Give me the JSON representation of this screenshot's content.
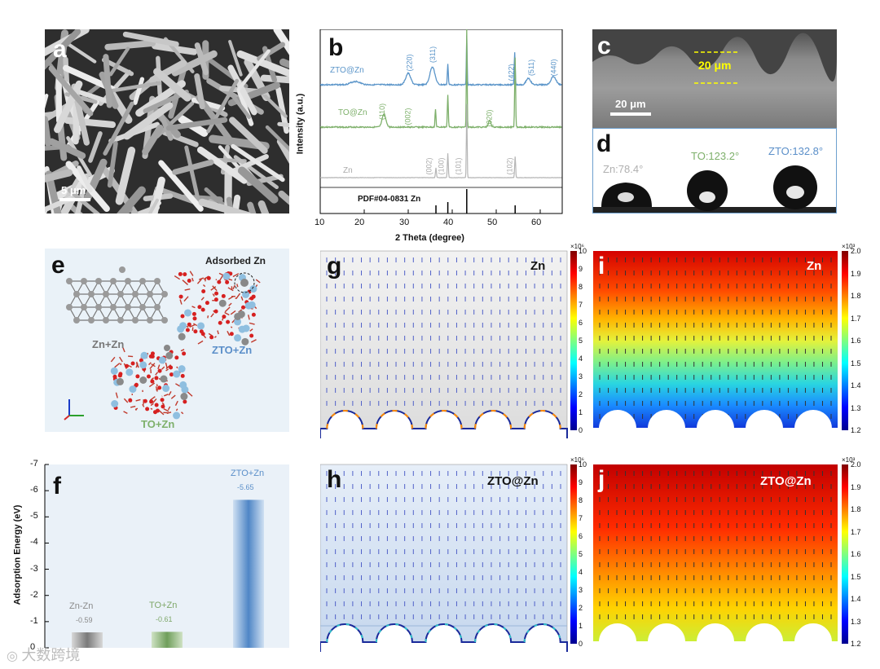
{
  "panels": {
    "a": {
      "label": "a",
      "scale_bar": "5 μm"
    },
    "b": {
      "label": "b",
      "xlabel": "2 Theta (degree)",
      "ylabel": "Intensity (a.u.)",
      "x_ticks": [
        "10",
        "20",
        "30",
        "40",
        "50",
        "60"
      ],
      "pdf_label": "PDF#04-0831 Zn",
      "series_labels": {
        "zto": "ZTO@Zn",
        "to": "TO@Zn",
        "zn": "Zn"
      },
      "zto_peaks": [
        "(220)",
        "(311)",
        "(422)",
        "(511)",
        "(440)"
      ],
      "to_peaks": [
        "(110)",
        "(002)",
        "(020)"
      ],
      "zn_peaks": [
        "(002)",
        "(100)",
        "(101)",
        "(102)"
      ]
    },
    "c": {
      "label": "c",
      "thickness": "20 μm",
      "scale_bar": "20 μm"
    },
    "d": {
      "label": "d",
      "angles": [
        "Zn:78.4°",
        "TO:123.2°",
        "ZTO:132.8°"
      ]
    },
    "e": {
      "label": "e",
      "adsorbed": "Adsorbed Zn",
      "structures": [
        "Zn+Zn",
        "ZTO+Zn",
        "TO+Zn"
      ]
    },
    "f": {
      "label": "f",
      "ylabel": "Adsorption Energy (eV)",
      "yticks": [
        "-7",
        "-6",
        "-5",
        "-4",
        "-3",
        "-2",
        "-1",
        "0"
      ]
    },
    "g": {
      "label": "g",
      "title": "Zn",
      "exp": "×10⁶",
      "ticks": [
        "10",
        "9",
        "8",
        "7",
        "6",
        "5",
        "4",
        "3",
        "2",
        "1",
        "0"
      ]
    },
    "h": {
      "label": "h",
      "title": "ZTO@Zn",
      "exp": "×10⁶",
      "ticks": [
        "10",
        "9",
        "8",
        "7",
        "6",
        "5",
        "4",
        "3",
        "2",
        "1",
        "0"
      ]
    },
    "i": {
      "label": "i",
      "title": "Zn",
      "exp": "×10³",
      "ticks": [
        "2.0",
        "1.9",
        "1.8",
        "1.7",
        "1.6",
        "1.5",
        "1.4",
        "1.3",
        "1.2"
      ]
    },
    "j": {
      "label": "j",
      "title": "ZTO@Zn",
      "exp": "×10³",
      "ticks": [
        "2.0",
        "1.9",
        "1.8",
        "1.7",
        "1.6",
        "1.5",
        "1.4",
        "1.3",
        "1.2"
      ]
    }
  },
  "chart_data": {
    "type": "bar",
    "categories": [
      "Zn-Zn",
      "TO+Zn",
      "ZTO+Zn"
    ],
    "values": [
      -0.59,
      -0.61,
      -5.65
    ],
    "value_labels": [
      "-0.59",
      "-0.61",
      "-5.65"
    ],
    "ylabel": "Adsorption Energy (eV)",
    "ylim": [
      0,
      -7
    ],
    "colors": [
      "#8a8a8a",
      "#7fa86a",
      "#5b8fc9"
    ]
  },
  "watermark": "大数跨境"
}
